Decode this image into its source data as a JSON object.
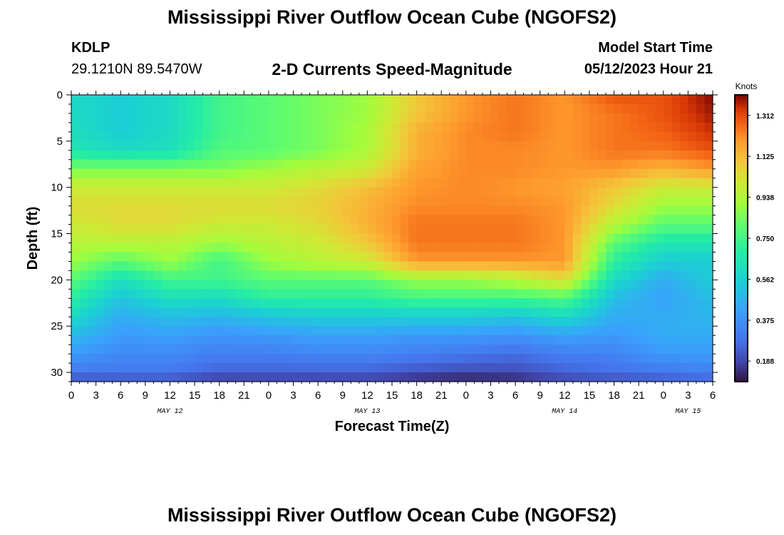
{
  "header": {
    "title": "Mississippi River Outflow Ocean Cube (NGOFS2)",
    "station": "KDLP",
    "coords": "29.1210N  89.5470W",
    "subtitle": "2-D Currents Speed-Magnitude",
    "model_start_label": "Model Start Time",
    "model_start_value": "05/12/2023 Hour 21"
  },
  "footer": {
    "title": "Mississippi River Outflow Ocean Cube (NGOFS2)"
  },
  "chart_data": {
    "type": "heatmap",
    "title": "2-D Currents Speed-Magnitude",
    "xlabel": "Forecast Time(Z)",
    "ylabel": "Depth (ft)",
    "xlim": [
      0,
      78
    ],
    "ylim": [
      31,
      0
    ],
    "x_ticks": [
      {
        "hour": 0,
        "label": "0"
      },
      {
        "hour": 3,
        "label": "3"
      },
      {
        "hour": 6,
        "label": "6"
      },
      {
        "hour": 9,
        "label": "9"
      },
      {
        "hour": 12,
        "label": "12"
      },
      {
        "hour": 15,
        "label": "15"
      },
      {
        "hour": 18,
        "label": "18"
      },
      {
        "hour": 21,
        "label": "21"
      },
      {
        "hour": 24,
        "label": "0"
      },
      {
        "hour": 27,
        "label": "3"
      },
      {
        "hour": 30,
        "label": "6"
      },
      {
        "hour": 33,
        "label": "9"
      },
      {
        "hour": 36,
        "label": "12"
      },
      {
        "hour": 39,
        "label": "15"
      },
      {
        "hour": 42,
        "label": "18"
      },
      {
        "hour": 45,
        "label": "21"
      },
      {
        "hour": 48,
        "label": "0"
      },
      {
        "hour": 51,
        "label": "3"
      },
      {
        "hour": 54,
        "label": "6"
      },
      {
        "hour": 57,
        "label": "9"
      },
      {
        "hour": 60,
        "label": "12"
      },
      {
        "hour": 63,
        "label": "15"
      },
      {
        "hour": 66,
        "label": "18"
      },
      {
        "hour": 69,
        "label": "21"
      },
      {
        "hour": 72,
        "label": "0"
      },
      {
        "hour": 75,
        "label": "3"
      },
      {
        "hour": 78,
        "label": "6"
      }
    ],
    "date_labels": [
      {
        "hour": 12,
        "label": "MAY 12"
      },
      {
        "hour": 36,
        "label": "MAY 13"
      },
      {
        "hour": 60,
        "label": "MAY 14"
      },
      {
        "hour": 75,
        "label": "MAY 15"
      }
    ],
    "y_ticks": [
      0,
      5,
      10,
      15,
      20,
      25,
      30
    ],
    "colorbar": {
      "title": "Knots",
      "min": 0.094,
      "max": 1.406,
      "ticks": [
        "1.312",
        "1.125",
        "0.938",
        "0.750",
        "0.562",
        "0.375",
        "0.188"
      ],
      "tick_values": [
        1.312,
        1.125,
        0.938,
        0.75,
        0.562,
        0.375,
        0.188
      ]
    },
    "depth_levels_ft": [
      0,
      2,
      4,
      6,
      8,
      10,
      12,
      14,
      16,
      18,
      20,
      22,
      24,
      26,
      28,
      30,
      31
    ],
    "time_hours": [
      0,
      6,
      12,
      18,
      24,
      30,
      36,
      42,
      48,
      54,
      60,
      66,
      72,
      78
    ],
    "speed_knots": [
      [
        0.6,
        0.55,
        0.6,
        0.75,
        0.8,
        0.85,
        0.9,
        1.1,
        1.2,
        1.25,
        1.2,
        1.3,
        1.3,
        1.4
      ],
      [
        0.6,
        0.55,
        0.6,
        0.75,
        0.8,
        0.85,
        0.9,
        1.1,
        1.2,
        1.25,
        1.2,
        1.25,
        1.3,
        1.38
      ],
      [
        0.62,
        0.55,
        0.6,
        0.75,
        0.8,
        0.85,
        0.92,
        1.15,
        1.22,
        1.25,
        1.2,
        1.25,
        1.28,
        1.35
      ],
      [
        0.65,
        0.6,
        0.62,
        0.78,
        0.8,
        0.85,
        0.92,
        1.15,
        1.22,
        1.22,
        1.2,
        1.25,
        1.25,
        1.3
      ],
      [
        0.85,
        0.85,
        0.85,
        0.85,
        0.9,
        0.95,
        1.0,
        1.18,
        1.22,
        1.22,
        1.2,
        1.2,
        1.15,
        1.2
      ],
      [
        1.0,
        1.0,
        1.0,
        1.0,
        1.0,
        1.05,
        1.12,
        1.2,
        1.22,
        1.2,
        1.18,
        1.1,
        1.0,
        1.0
      ],
      [
        1.05,
        1.05,
        1.05,
        1.05,
        1.05,
        1.08,
        1.15,
        1.22,
        1.22,
        1.22,
        1.2,
        1.05,
        0.9,
        0.9
      ],
      [
        1.0,
        1.05,
        1.05,
        1.0,
        1.0,
        1.05,
        1.15,
        1.25,
        1.25,
        1.25,
        1.2,
        0.95,
        0.8,
        0.8
      ],
      [
        0.95,
        0.95,
        0.95,
        0.9,
        0.95,
        1.0,
        1.1,
        1.25,
        1.25,
        1.25,
        1.2,
        0.8,
        0.65,
        0.65
      ],
      [
        0.9,
        0.8,
        0.9,
        0.75,
        0.9,
        0.95,
        1.0,
        1.2,
        1.2,
        1.2,
        1.2,
        0.7,
        0.55,
        0.55
      ],
      [
        0.8,
        0.62,
        0.75,
        0.75,
        0.8,
        0.8,
        0.8,
        0.9,
        0.9,
        0.95,
        1.05,
        0.6,
        0.45,
        0.55
      ],
      [
        0.7,
        0.52,
        0.62,
        0.6,
        0.7,
        0.7,
        0.7,
        0.75,
        0.75,
        0.75,
        0.78,
        0.5,
        0.42,
        0.5
      ],
      [
        0.6,
        0.45,
        0.5,
        0.48,
        0.52,
        0.55,
        0.55,
        0.55,
        0.55,
        0.52,
        0.6,
        0.45,
        0.45,
        0.48
      ],
      [
        0.5,
        0.4,
        0.42,
        0.38,
        0.4,
        0.42,
        0.42,
        0.4,
        0.4,
        0.38,
        0.42,
        0.4,
        0.45,
        0.45
      ],
      [
        0.4,
        0.35,
        0.35,
        0.32,
        0.32,
        0.34,
        0.34,
        0.32,
        0.3,
        0.28,
        0.32,
        0.33,
        0.4,
        0.4
      ],
      [
        0.3,
        0.3,
        0.3,
        0.25,
        0.25,
        0.25,
        0.25,
        0.22,
        0.2,
        0.2,
        0.25,
        0.28,
        0.3,
        0.32
      ],
      [
        0.2,
        0.2,
        0.2,
        0.15,
        0.16,
        0.16,
        0.16,
        0.12,
        0.1,
        0.12,
        0.18,
        0.2,
        0.22,
        0.25
      ]
    ]
  }
}
